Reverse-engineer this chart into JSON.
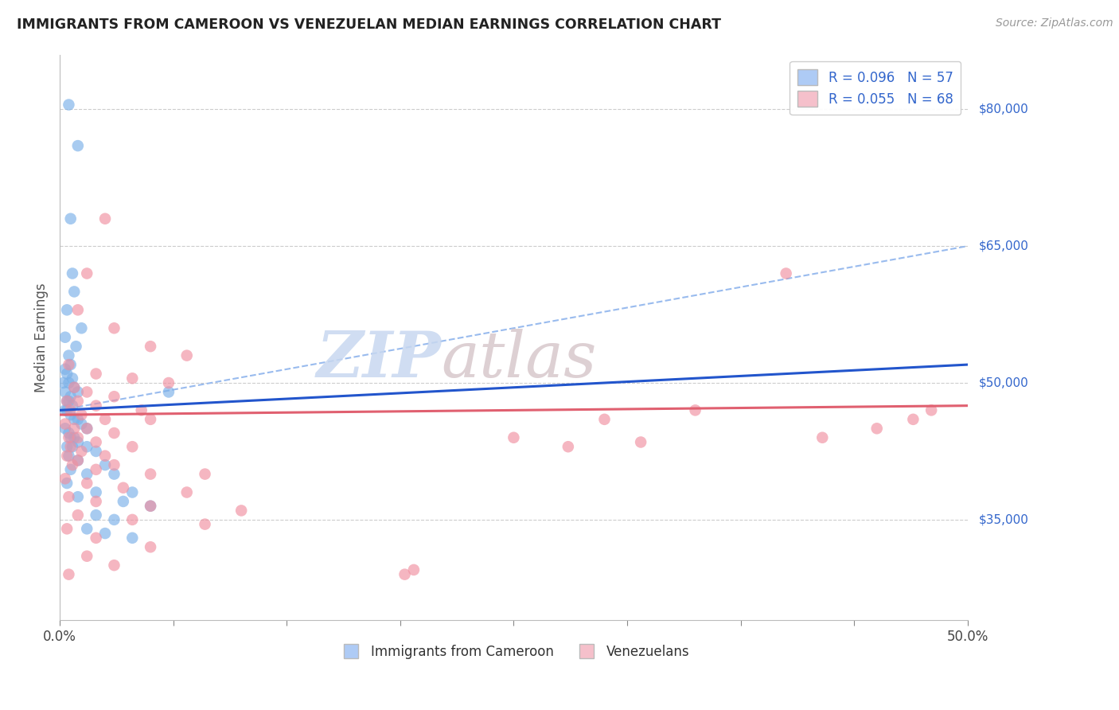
{
  "title": "IMMIGRANTS FROM CAMEROON VS VENEZUELAN MEDIAN EARNINGS CORRELATION CHART",
  "source": "Source: ZipAtlas.com",
  "ylabel": "Median Earnings",
  "ytick_labels": [
    "$35,000",
    "$50,000",
    "$65,000",
    "$80,000"
  ],
  "ytick_values": [
    35000,
    50000,
    65000,
    80000
  ],
  "ymin": 24000,
  "ymax": 86000,
  "xmin": 0.0,
  "xmax": 50.0,
  "legend_entries": [
    {
      "label": "R = 0.096   N = 57",
      "color": "#aecbf5"
    },
    {
      "label": "R = 0.055   N = 68",
      "color": "#f5c0cb"
    }
  ],
  "legend_bottom": [
    "Immigrants from Cameroon",
    "Venezuelans"
  ],
  "cameroon_color": "#7ab0e8",
  "venezuelan_color": "#f090a0",
  "cameroon_trend_color": "#2255cc",
  "venezuelan_trend_color": "#e06070",
  "dashed_line_color": "#99bbee",
  "watermark_zip": "ZIP",
  "watermark_atlas": "atlas",
  "cameroon_points": [
    [
      0.5,
      80500
    ],
    [
      1.0,
      76000
    ],
    [
      0.6,
      68000
    ],
    [
      0.7,
      62000
    ],
    [
      0.8,
      60000
    ],
    [
      0.4,
      58000
    ],
    [
      1.2,
      56000
    ],
    [
      0.3,
      55000
    ],
    [
      0.9,
      54000
    ],
    [
      0.5,
      53000
    ],
    [
      0.6,
      52000
    ],
    [
      0.3,
      51500
    ],
    [
      0.4,
      51000
    ],
    [
      0.7,
      50500
    ],
    [
      0.2,
      50000
    ],
    [
      0.5,
      50000
    ],
    [
      0.8,
      49500
    ],
    [
      1.0,
      49000
    ],
    [
      0.3,
      49000
    ],
    [
      0.6,
      48500
    ],
    [
      0.4,
      48000
    ],
    [
      0.5,
      48000
    ],
    [
      0.7,
      47500
    ],
    [
      0.3,
      47000
    ],
    [
      0.4,
      47000
    ],
    [
      0.6,
      46500
    ],
    [
      0.8,
      46000
    ],
    [
      1.0,
      46000
    ],
    [
      1.2,
      45500
    ],
    [
      1.5,
      45000
    ],
    [
      0.3,
      45000
    ],
    [
      0.5,
      44500
    ],
    [
      0.6,
      44000
    ],
    [
      0.8,
      44000
    ],
    [
      1.0,
      43500
    ],
    [
      0.4,
      43000
    ],
    [
      0.7,
      43000
    ],
    [
      1.5,
      43000
    ],
    [
      2.0,
      42500
    ],
    [
      0.5,
      42000
    ],
    [
      1.0,
      41500
    ],
    [
      2.5,
      41000
    ],
    [
      0.6,
      40500
    ],
    [
      1.5,
      40000
    ],
    [
      3.0,
      40000
    ],
    [
      0.4,
      39000
    ],
    [
      2.0,
      38000
    ],
    [
      4.0,
      38000
    ],
    [
      1.0,
      37500
    ],
    [
      3.5,
      37000
    ],
    [
      5.0,
      36500
    ],
    [
      2.0,
      35500
    ],
    [
      3.0,
      35000
    ],
    [
      1.5,
      34000
    ],
    [
      2.5,
      33500
    ],
    [
      4.0,
      33000
    ],
    [
      6.0,
      49000
    ]
  ],
  "venezuelan_points": [
    [
      2.5,
      68000
    ],
    [
      1.5,
      62000
    ],
    [
      1.0,
      58000
    ],
    [
      3.0,
      56000
    ],
    [
      5.0,
      54000
    ],
    [
      7.0,
      53000
    ],
    [
      0.5,
      52000
    ],
    [
      2.0,
      51000
    ],
    [
      4.0,
      50500
    ],
    [
      6.0,
      50000
    ],
    [
      0.8,
      49500
    ],
    [
      1.5,
      49000
    ],
    [
      3.0,
      48500
    ],
    [
      0.4,
      48000
    ],
    [
      1.0,
      48000
    ],
    [
      2.0,
      47500
    ],
    [
      4.5,
      47000
    ],
    [
      0.6,
      47000
    ],
    [
      1.2,
      46500
    ],
    [
      2.5,
      46000
    ],
    [
      5.0,
      46000
    ],
    [
      0.3,
      45500
    ],
    [
      0.8,
      45000
    ],
    [
      1.5,
      45000
    ],
    [
      3.0,
      44500
    ],
    [
      0.5,
      44000
    ],
    [
      1.0,
      44000
    ],
    [
      2.0,
      43500
    ],
    [
      4.0,
      43000
    ],
    [
      0.6,
      43000
    ],
    [
      1.2,
      42500
    ],
    [
      2.5,
      42000
    ],
    [
      0.4,
      42000
    ],
    [
      1.0,
      41500
    ],
    [
      3.0,
      41000
    ],
    [
      0.7,
      41000
    ],
    [
      2.0,
      40500
    ],
    [
      5.0,
      40000
    ],
    [
      8.0,
      40000
    ],
    [
      0.3,
      39500
    ],
    [
      1.5,
      39000
    ],
    [
      3.5,
      38500
    ],
    [
      7.0,
      38000
    ],
    [
      0.5,
      37500
    ],
    [
      2.0,
      37000
    ],
    [
      5.0,
      36500
    ],
    [
      10.0,
      36000
    ],
    [
      1.0,
      35500
    ],
    [
      4.0,
      35000
    ],
    [
      8.0,
      34500
    ],
    [
      0.4,
      34000
    ],
    [
      2.0,
      33000
    ],
    [
      5.0,
      32000
    ],
    [
      1.5,
      31000
    ],
    [
      3.0,
      30000
    ],
    [
      0.5,
      29000
    ],
    [
      19.0,
      29000
    ],
    [
      19.5,
      29500
    ],
    [
      30.0,
      46000
    ],
    [
      35.0,
      47000
    ],
    [
      40.0,
      62000
    ],
    [
      45.0,
      45000
    ],
    [
      47.0,
      46000
    ],
    [
      48.0,
      47000
    ],
    [
      42.0,
      44000
    ],
    [
      25.0,
      44000
    ],
    [
      28.0,
      43000
    ],
    [
      32.0,
      43500
    ]
  ],
  "cam_trend": [
    0.0,
    47000,
    50.0,
    52000
  ],
  "ven_trend": [
    0.0,
    46500,
    50.0,
    47500
  ],
  "dash_trend": [
    0.0,
    47000,
    50.0,
    65000
  ]
}
